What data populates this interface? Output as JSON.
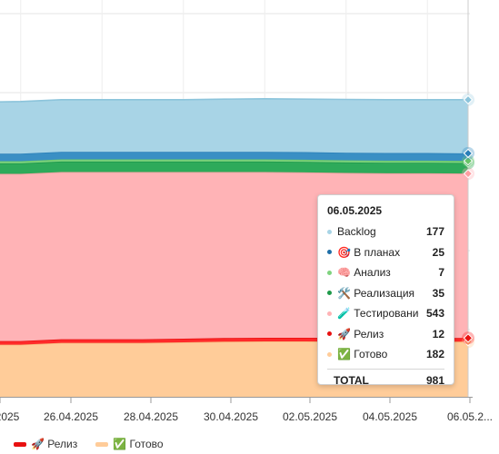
{
  "chart_data": {
    "type": "area",
    "stacked": true,
    "x_ticks": [
      "2025",
      "26.04.2025",
      "28.04.2025",
      "30.04.2025",
      "02.05.2025",
      "04.05.2025",
      "06.05.2..."
    ],
    "x": [
      "24.04.2025",
      "25.04.2025",
      "26.04.2025",
      "27.04.2025",
      "28.04.2025",
      "29.04.2025",
      "30.04.2025",
      "01.05.2025",
      "02.05.2025",
      "03.05.2025",
      "04.05.2025",
      "05.05.2025",
      "06.05.2025"
    ],
    "series": [
      {
        "name": "Backlog",
        "color": "#a8d4e6",
        "stroke": "#8cc4db",
        "values": [
          170,
          172,
          172,
          172,
          172,
          172,
          174,
          175,
          175,
          176,
          176,
          176,
          177
        ]
      },
      {
        "name": "🎯 В планах",
        "color": "#3a8fc4",
        "stroke": "#2a7fb8",
        "values": [
          25,
          25,
          25,
          25,
          25,
          25,
          25,
          25,
          25,
          25,
          25,
          25,
          25
        ]
      },
      {
        "name": "🧠 Анализ",
        "color": "#7fd37f",
        "stroke": "#66c466",
        "values": [
          7,
          7,
          7,
          7,
          7,
          7,
          7,
          7,
          7,
          7,
          7,
          7,
          7
        ]
      },
      {
        "name": "🛠️ Реализация",
        "color": "#2eaa5a",
        "stroke": "#1f9a4a",
        "values": [
          35,
          35,
          35,
          35,
          35,
          35,
          35,
          35,
          35,
          35,
          35,
          35,
          35
        ]
      },
      {
        "name": "🧪 Тестирование",
        "color": "#ffb3b6",
        "stroke": "#ff9ea2",
        "values": [
          552,
          552,
          552,
          552,
          552,
          550,
          548,
          547,
          546,
          545,
          544,
          544,
          543
        ]
      },
      {
        "name": "🚀 Релиз",
        "color": "#ff2a2a",
        "stroke": "#e81010",
        "values": [
          12,
          12,
          12,
          12,
          12,
          12,
          12,
          12,
          12,
          12,
          12,
          12,
          12
        ]
      },
      {
        "name": "✅ Готово",
        "color": "#ffcc99",
        "stroke": "#f5b77a",
        "values": [
          172,
          172,
          178,
          178,
          178,
          180,
          182,
          183,
          183,
          182,
          182,
          182,
          182
        ]
      }
    ],
    "hover_index": 12,
    "tooltip": {
      "date": "06.05.2025",
      "total_label": "TOTAL",
      "total": "981",
      "rows": [
        {
          "dot": "#a8d4e6",
          "label": "Backlog",
          "value": "177"
        },
        {
          "dot": "#1f6fa8",
          "label": "🎯 В планах",
          "value": "25"
        },
        {
          "dot": "#7fd37f",
          "label": "🧠 Анализ",
          "value": "7"
        },
        {
          "dot": "#1f9a4a",
          "label": "🛠️ Реализация",
          "value": "35"
        },
        {
          "dot": "#ffb3b6",
          "label": "🧪 Тестирование",
          "value": "543"
        },
        {
          "dot": "#e81010",
          "label": "🚀 Релиз",
          "value": "12"
        },
        {
          "dot": "#ffcc99",
          "label": "✅ Готово",
          "value": "182"
        }
      ]
    },
    "legend_position": "bottom",
    "legend_visible": [
      {
        "label": "🚀 Релиз",
        "color": "#e81010"
      },
      {
        "label": "✅ Готово",
        "color": "#ffcc99"
      }
    ]
  }
}
